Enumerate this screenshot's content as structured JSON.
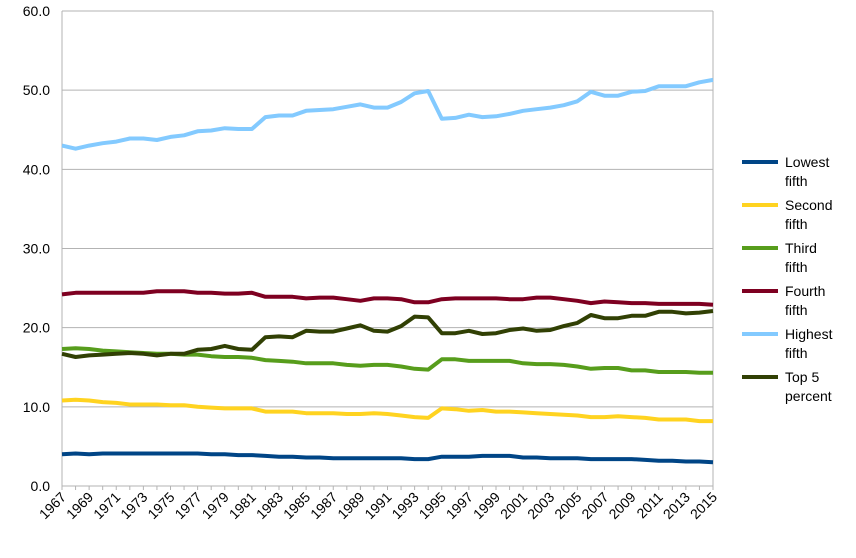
{
  "chart_data": {
    "type": "line",
    "title": "",
    "xlabel": "",
    "ylabel": "",
    "ylim": [
      0,
      60
    ],
    "yticks": [
      "0.0",
      "10.0",
      "20.0",
      "30.0",
      "40.0",
      "50.0",
      "60.0"
    ],
    "grid": true,
    "legend_position": "right",
    "x": [
      1967,
      1968,
      1969,
      1970,
      1971,
      1972,
      1973,
      1974,
      1975,
      1976,
      1977,
      1978,
      1979,
      1980,
      1981,
      1982,
      1983,
      1984,
      1985,
      1986,
      1987,
      1988,
      1989,
      1990,
      1991,
      1992,
      1993,
      1994,
      1995,
      1996,
      1997,
      1998,
      1999,
      2000,
      2001,
      2002,
      2003,
      2004,
      2005,
      2006,
      2007,
      2008,
      2009,
      2010,
      2011,
      2012,
      2013,
      2014,
      2015
    ],
    "series": [
      {
        "name": "Lowest fifth",
        "legend_lines": [
          "Lowest",
          "fifth"
        ],
        "color": "#004586",
        "values": [
          4.0,
          4.1,
          4.0,
          4.1,
          4.1,
          4.1,
          4.1,
          4.1,
          4.1,
          4.1,
          4.1,
          4.0,
          4.0,
          3.9,
          3.9,
          3.8,
          3.7,
          3.7,
          3.6,
          3.6,
          3.5,
          3.5,
          3.5,
          3.5,
          3.5,
          3.5,
          3.4,
          3.4,
          3.7,
          3.7,
          3.7,
          3.8,
          3.8,
          3.8,
          3.6,
          3.6,
          3.5,
          3.5,
          3.5,
          3.4,
          3.4,
          3.4,
          3.4,
          3.3,
          3.2,
          3.2,
          3.1,
          3.1,
          3.0
        ]
      },
      {
        "name": "Second fifth",
        "legend_lines": [
          "Second",
          "fifth"
        ],
        "color": "#ffd320",
        "values": [
          10.8,
          10.9,
          10.8,
          10.6,
          10.5,
          10.3,
          10.3,
          10.3,
          10.2,
          10.2,
          10.0,
          9.9,
          9.8,
          9.8,
          9.8,
          9.4,
          9.4,
          9.4,
          9.2,
          9.2,
          9.2,
          9.1,
          9.1,
          9.2,
          9.1,
          8.9,
          8.7,
          8.6,
          9.8,
          9.7,
          9.5,
          9.6,
          9.4,
          9.4,
          9.3,
          9.2,
          9.1,
          9.0,
          8.9,
          8.7,
          8.7,
          8.8,
          8.7,
          8.6,
          8.4,
          8.4,
          8.4,
          8.2,
          8.2
        ]
      },
      {
        "name": "Third fifth",
        "legend_lines": [
          "Third",
          "fifth"
        ],
        "color": "#579d1c",
        "values": [
          17.3,
          17.4,
          17.3,
          17.1,
          17.0,
          16.9,
          16.8,
          16.7,
          16.7,
          16.6,
          16.6,
          16.4,
          16.3,
          16.3,
          16.2,
          15.9,
          15.8,
          15.7,
          15.5,
          15.5,
          15.5,
          15.3,
          15.2,
          15.3,
          15.3,
          15.1,
          14.8,
          14.7,
          16.0,
          16.0,
          15.8,
          15.8,
          15.8,
          15.8,
          15.5,
          15.4,
          15.4,
          15.3,
          15.1,
          14.8,
          14.9,
          14.9,
          14.6,
          14.6,
          14.4,
          14.4,
          14.4,
          14.3,
          14.3
        ]
      },
      {
        "name": "Fourth fifth",
        "legend_lines": [
          "Fourth",
          "fifth"
        ],
        "color": "#7e0021",
        "values": [
          24.2,
          24.4,
          24.4,
          24.4,
          24.4,
          24.4,
          24.4,
          24.6,
          24.6,
          24.6,
          24.4,
          24.4,
          24.3,
          24.3,
          24.4,
          23.9,
          23.9,
          23.9,
          23.7,
          23.8,
          23.8,
          23.6,
          23.4,
          23.7,
          23.7,
          23.6,
          23.2,
          23.2,
          23.6,
          23.7,
          23.7,
          23.7,
          23.7,
          23.6,
          23.6,
          23.8,
          23.8,
          23.6,
          23.4,
          23.1,
          23.3,
          23.2,
          23.1,
          23.1,
          23.0,
          23.0,
          23.0,
          23.0,
          22.9
        ]
      },
      {
        "name": "Highest fifth",
        "legend_lines": [
          "Highest",
          "fifth"
        ],
        "color": "#83caff",
        "values": [
          43.0,
          42.6,
          43.0,
          43.3,
          43.5,
          43.9,
          43.9,
          43.7,
          44.1,
          44.3,
          44.8,
          44.9,
          45.2,
          45.1,
          45.1,
          46.6,
          46.8,
          46.8,
          47.4,
          47.5,
          47.6,
          47.9,
          48.2,
          47.8,
          47.8,
          48.5,
          49.6,
          49.9,
          46.4,
          46.5,
          46.9,
          46.6,
          46.7,
          47.0,
          47.4,
          47.6,
          47.8,
          48.1,
          48.6,
          49.8,
          49.3,
          49.3,
          49.8,
          49.9,
          50.5,
          50.5,
          50.5,
          51.0,
          51.3
        ]
      },
      {
        "name": "Top 5 percent",
        "legend_lines": [
          "Top 5",
          "percent"
        ],
        "color": "#314004",
        "values": [
          16.7,
          16.3,
          16.5,
          16.6,
          16.7,
          16.8,
          16.7,
          16.5,
          16.7,
          16.7,
          17.2,
          17.3,
          17.7,
          17.3,
          17.2,
          18.8,
          18.9,
          18.8,
          19.6,
          19.5,
          19.5,
          19.9,
          20.3,
          19.6,
          19.5,
          20.2,
          21.4,
          21.3,
          19.3,
          19.3,
          19.6,
          19.2,
          19.3,
          19.7,
          19.9,
          19.6,
          19.7,
          20.2,
          20.6,
          21.6,
          21.2,
          21.2,
          21.5,
          21.5,
          22.0,
          22.0,
          21.8,
          21.9,
          22.1
        ]
      }
    ]
  }
}
